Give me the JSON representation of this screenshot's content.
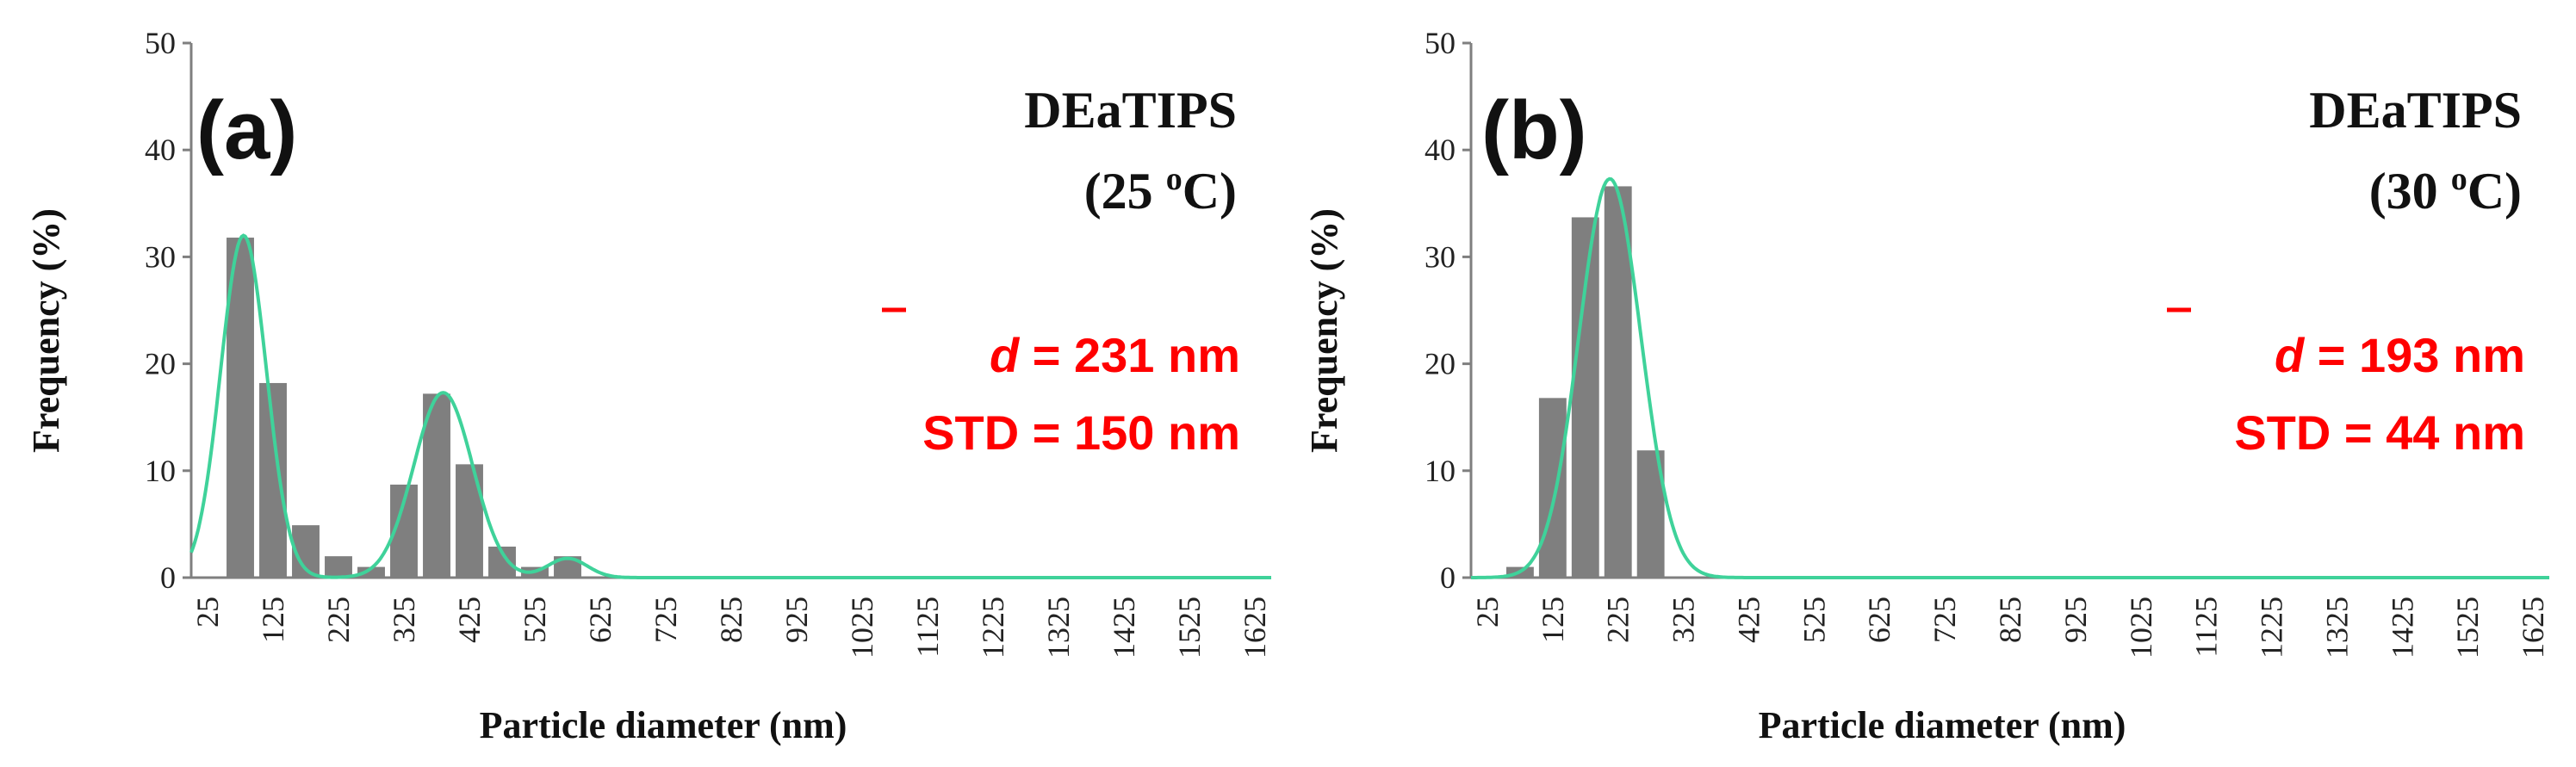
{
  "colors": {
    "bar": "#7f7f7f",
    "curve": "#3fd29a",
    "stat": "#ff0000",
    "axis": "#7f7f7f"
  },
  "chart_data": [
    {
      "type": "bar",
      "panel": "(a)",
      "sample": "DEaTIPS",
      "temperature_value": "(25 ",
      "temperature_sup": "o",
      "temperature_unit": "C)",
      "mean_symbol": "d",
      "mean_text": " = 231 nm",
      "std_text": "STD = 150 nm",
      "xlabel": "Particle diameter (nm)",
      "ylabel": "Frequency (%)",
      "ylim": [
        0,
        50
      ],
      "yticks": [
        "0",
        "10",
        "20",
        "30",
        "40",
        "50"
      ],
      "xtick_labels": [
        "25",
        "125",
        "225",
        "325",
        "425",
        "525",
        "625",
        "725",
        "825",
        "925",
        "1025",
        "1125",
        "1225",
        "1325",
        "1425",
        "1525",
        "1625"
      ],
      "bin_count": 33,
      "values": [
        0,
        31.8,
        18.2,
        4.9,
        2.0,
        1.0,
        8.7,
        17.2,
        10.6,
        2.9,
        1.0,
        2.0,
        0,
        0,
        0,
        0,
        0,
        0,
        0,
        0,
        0,
        0,
        0,
        0,
        0,
        0,
        0,
        0,
        0,
        0,
        0,
        0,
        0
      ],
      "fit_curve": {
        "peaks": [
          {
            "center_bin": 1.1,
            "height": 32.0,
            "sigma": 0.7
          },
          {
            "center_bin": 7.2,
            "height": 17.3,
            "sigma": 0.9
          },
          {
            "center_bin": 11.0,
            "height": 1.8,
            "sigma": 0.6
          }
        ]
      }
    },
    {
      "type": "bar",
      "panel": "(b)",
      "sample": "DEaTIPS",
      "temperature_value": "(30 ",
      "temperature_sup": "o",
      "temperature_unit": "C)",
      "mean_symbol": "d",
      "mean_text": " = 193 nm",
      "std_text": "STD = 44 nm",
      "xlabel": "Particle diameter (nm)",
      "ylabel": "Frequency (%)",
      "ylim": [
        0,
        50
      ],
      "yticks": [
        "0",
        "10",
        "20",
        "30",
        "40",
        "50"
      ],
      "xtick_labels": [
        "25",
        "125",
        "225",
        "325",
        "425",
        "525",
        "625",
        "725",
        "825",
        "925",
        "1025",
        "1125",
        "1225",
        "1325",
        "1425",
        "1525",
        "1625"
      ],
      "bin_count": 33,
      "values": [
        0,
        1.0,
        16.8,
        33.7,
        36.6,
        11.9,
        0,
        0,
        0,
        0,
        0,
        0,
        0,
        0,
        0,
        0,
        0,
        0,
        0,
        0,
        0,
        0,
        0,
        0,
        0,
        0,
        0,
        0,
        0,
        0,
        0,
        0,
        0
      ],
      "fit_curve": {
        "peaks": [
          {
            "center_bin": 3.75,
            "height": 37.3,
            "sigma": 0.95
          }
        ]
      }
    }
  ]
}
